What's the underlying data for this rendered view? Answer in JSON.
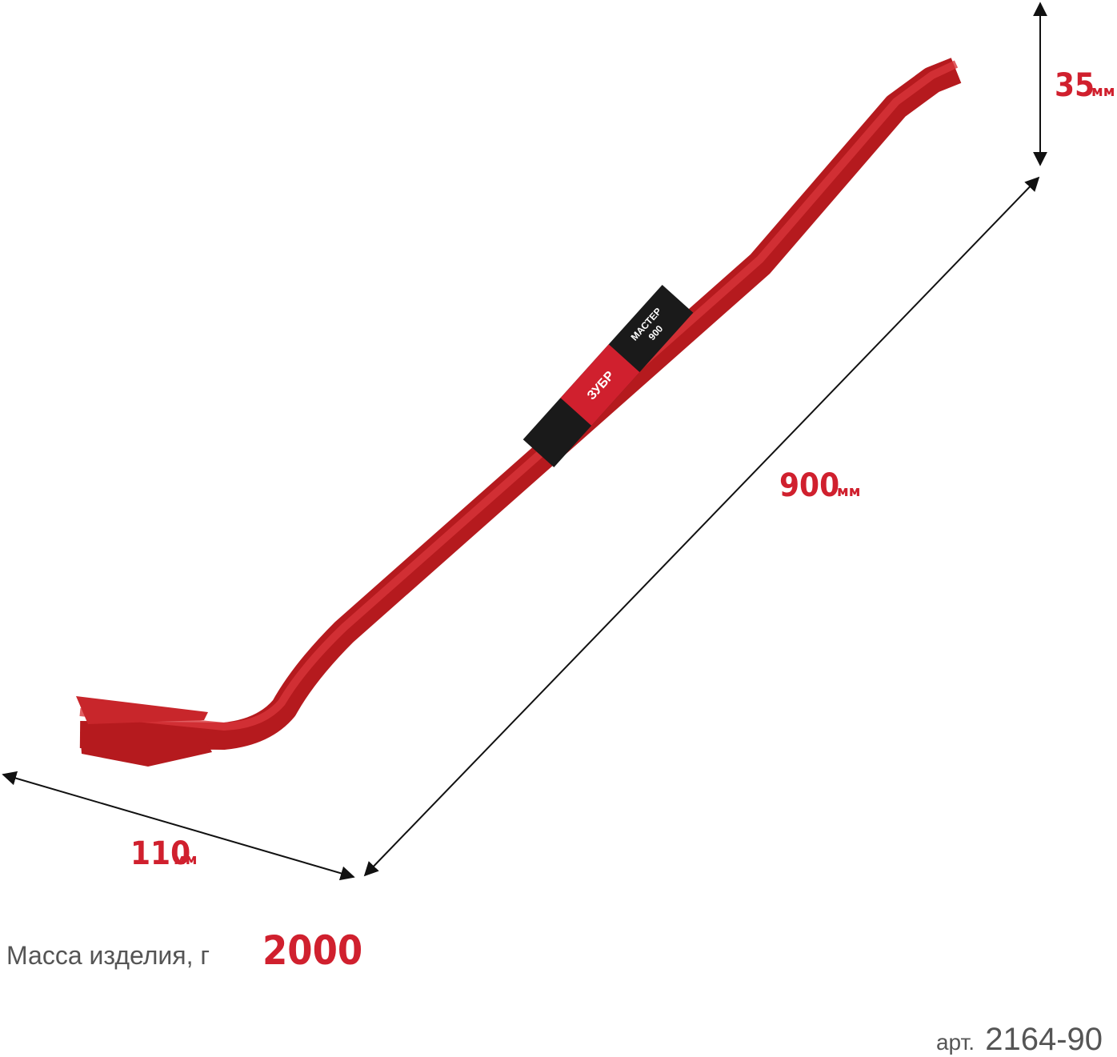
{
  "dimensions": {
    "height": {
      "value": "35",
      "unit": "мм"
    },
    "length": {
      "value": "900",
      "unit": "мм"
    },
    "width": {
      "value": "110",
      "unit": "мм"
    }
  },
  "label": {
    "brand": "ЗУБР",
    "model": "МАСТЕР",
    "size": "900"
  },
  "mass": {
    "label": "Масса изделия, г",
    "value": "2000"
  },
  "article": {
    "prefix": "арт.",
    "number": "2164-90"
  }
}
